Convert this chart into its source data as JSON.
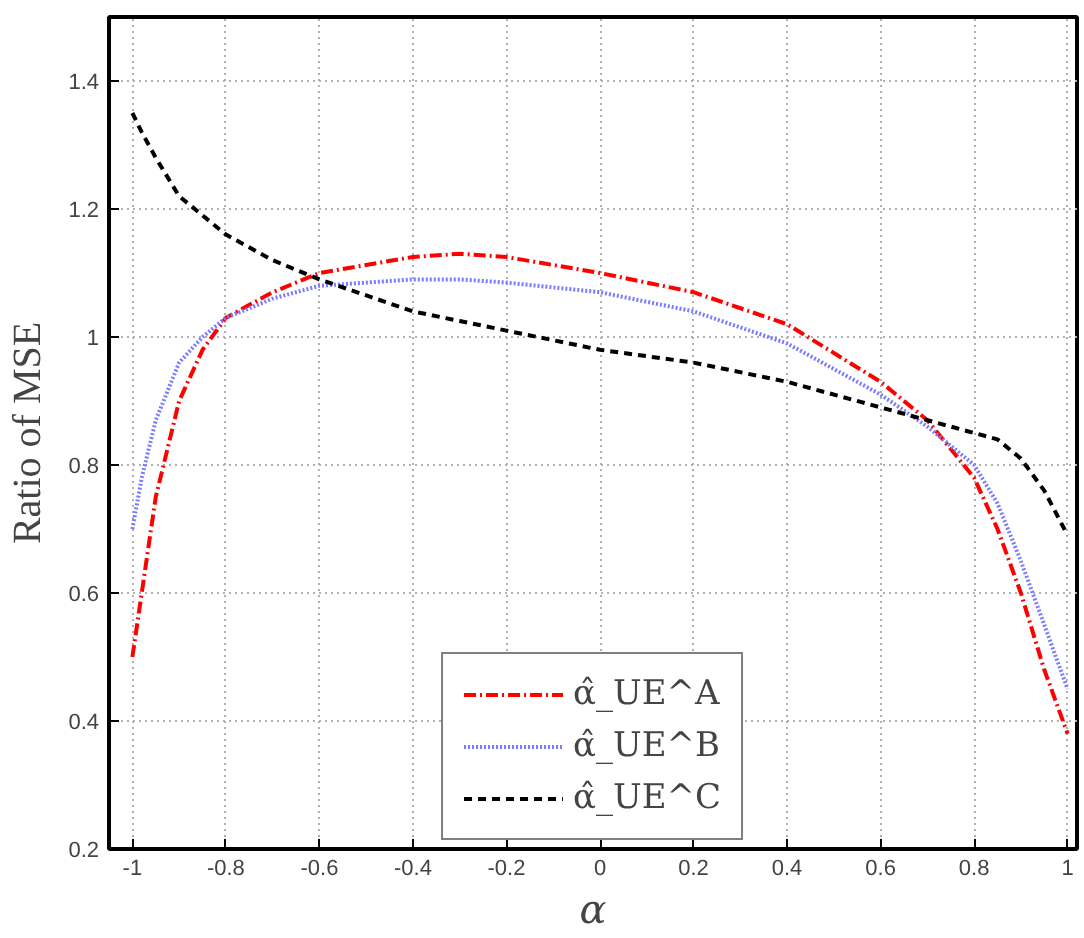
{
  "chart_data": {
    "type": "line",
    "xlabel": "α",
    "ylabel": "Ratio of MSE",
    "x": [
      -1,
      -0.98,
      -0.95,
      -0.9,
      -0.85,
      -0.8,
      -0.7,
      -0.6,
      -0.4,
      -0.3,
      -0.2,
      0,
      0.2,
      0.4,
      0.6,
      0.7,
      0.8,
      0.85,
      0.9,
      0.95,
      1
    ],
    "series": [
      {
        "name": "α̂_UE^A",
        "color": "#ff0000",
        "line_style": "dashdot",
        "values": [
          0.5,
          0.6,
          0.75,
          0.9,
          0.98,
          1.03,
          1.07,
          1.1,
          1.125,
          1.13,
          1.125,
          1.1,
          1.07,
          1.02,
          0.93,
          0.87,
          0.78,
          0.7,
          0.6,
          0.48,
          0.38
        ]
      },
      {
        "name": "α̂_UE^B",
        "color": "#7b7bff",
        "line_style": "dotted",
        "values": [
          0.7,
          0.78,
          0.87,
          0.96,
          1.0,
          1.03,
          1.06,
          1.08,
          1.09,
          1.09,
          1.085,
          1.07,
          1.04,
          0.99,
          0.91,
          0.86,
          0.8,
          0.74,
          0.65,
          0.55,
          0.45
        ]
      },
      {
        "name": "α̂_UE^C",
        "color": "#000000",
        "line_style": "dashed",
        "values": [
          1.35,
          1.32,
          1.28,
          1.22,
          1.19,
          1.16,
          1.12,
          1.09,
          1.04,
          1.025,
          1.01,
          0.98,
          0.96,
          0.93,
          0.89,
          0.87,
          0.85,
          0.84,
          0.81,
          0.76,
          0.69
        ]
      }
    ],
    "xlim": [
      -1.05,
      1.02
    ],
    "ylim": [
      0.2,
      1.5
    ],
    "xticks": [
      -1,
      -0.8,
      -0.6,
      -0.4,
      -0.2,
      0,
      0.2,
      0.4,
      0.6,
      0.8,
      1
    ],
    "yticks": [
      0.2,
      0.4,
      0.6,
      0.8,
      1.0,
      1.2,
      1.4
    ],
    "grid": true,
    "legend": "bottom",
    "marker": "none"
  }
}
